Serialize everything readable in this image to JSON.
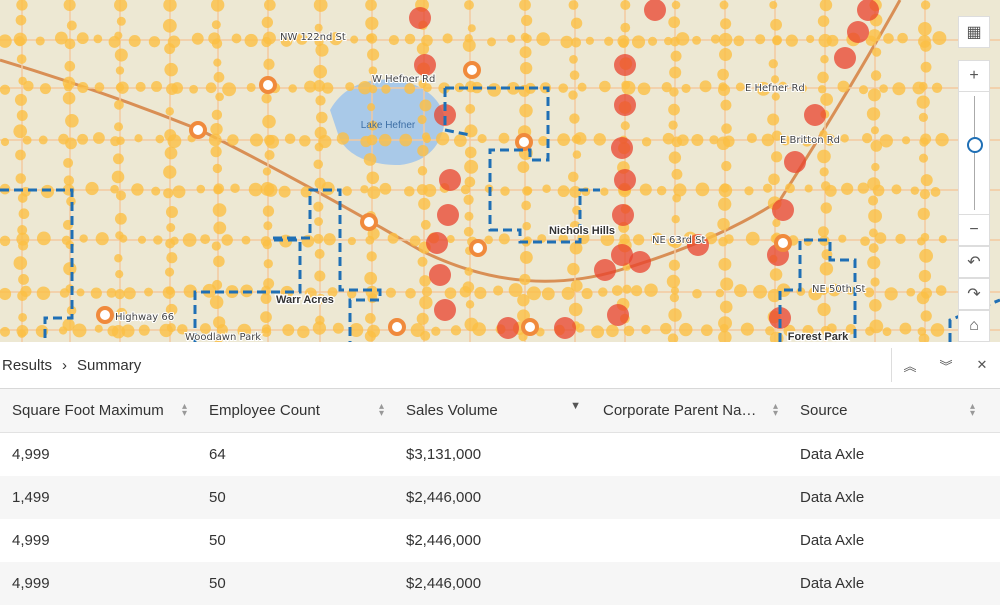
{
  "map": {
    "labels": [
      "Lake Hefner",
      "Warr Acres",
      "Nichols Hills",
      "Forest Park",
      "W Hefner Rd",
      "E Hefner Rd",
      "NW 122nd St",
      "E Britton Rd",
      "Highway 66",
      "NE 63rd St",
      "NE 50th St",
      "Woodlawn Park"
    ]
  },
  "breadcrumb": [
    "Results",
    "Summary"
  ],
  "table": {
    "columns": [
      "Square Foot Maximum",
      "Employee Count",
      "Sales Volume",
      "Corporate Parent Na…",
      "Source"
    ],
    "rows": [
      {
        "square_foot_maximum": "4,999",
        "employee_count": "64",
        "sales_volume": "$3,131,000",
        "source": "Data Axle"
      },
      {
        "square_foot_maximum": "1,499",
        "employee_count": "50",
        "sales_volume": "$2,446,000",
        "source": "Data Axle"
      },
      {
        "square_foot_maximum": "4,999",
        "employee_count": "50",
        "sales_volume": "$2,446,000",
        "source": "Data Axle"
      },
      {
        "square_foot_maximum": "4,999",
        "employee_count": "50",
        "sales_volume": "$2,446,000",
        "source": "Data Axle"
      }
    ]
  }
}
